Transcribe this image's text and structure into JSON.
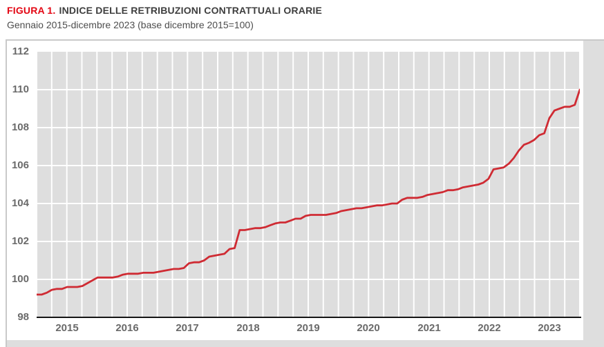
{
  "figure": {
    "label": "FIGURA 1.",
    "title": "INDICE DELLE RETRIBUZIONI CONTRATTUALI ORARIE",
    "subtitle": "Gennaio 2015-dicembre 2023 (base dicembre 2015=100)"
  },
  "colors": {
    "figura_red": "#e30613",
    "line": "#cf2b33",
    "panel_gray": "#dedede",
    "grid_white": "#ffffff",
    "axis_black": "#151515",
    "tick_gray": "#6a6a6a",
    "frame_gray": "#c9c9c9",
    "title_dark": "#3e3e3e",
    "subtitle_gray": "#4d4d4d"
  },
  "chart_data": {
    "type": "line",
    "title": "INDICE DELLE RETRIBUZIONI CONTRATTUALI ORARIE",
    "subtitle": "Gennaio 2015-dicembre 2023 (base dicembre 2015=100)",
    "xlabel": "",
    "ylabel": "",
    "ylim": [
      98,
      112
    ],
    "y_ticks": [
      112,
      110,
      108,
      106,
      104,
      102,
      100,
      98
    ],
    "x_tick_labels": [
      "2015",
      "2016",
      "2017",
      "2018",
      "2019",
      "2020",
      "2021",
      "2022",
      "2023"
    ],
    "x_frequency": "monthly",
    "x_start": "2015-01",
    "x_end": "2023-12",
    "grid": {
      "horizontal_step": 2,
      "vertical": "quarterly",
      "color": "white",
      "panel": "light-gray"
    },
    "legend": "none",
    "series": [
      {
        "name": "Indice delle retribuzioni contrattuali orarie (base dicembre 2015=100)",
        "values": [
          99.2,
          99.2,
          99.3,
          99.45,
          99.5,
          99.5,
          99.6,
          99.6,
          99.6,
          99.65,
          99.8,
          99.95,
          100.1,
          100.1,
          100.1,
          100.1,
          100.15,
          100.25,
          100.3,
          100.3,
          100.3,
          100.35,
          100.35,
          100.35,
          100.4,
          100.45,
          100.5,
          100.55,
          100.55,
          100.6,
          100.85,
          100.9,
          100.9,
          101.0,
          101.2,
          101.25,
          101.3,
          101.35,
          101.6,
          101.65,
          102.6,
          102.6,
          102.65,
          102.7,
          102.7,
          102.75,
          102.85,
          102.95,
          103.0,
          103.0,
          103.1,
          103.2,
          103.2,
          103.35,
          103.4,
          103.4,
          103.4,
          103.4,
          103.45,
          103.5,
          103.6,
          103.65,
          103.7,
          103.75,
          103.75,
          103.8,
          103.85,
          103.9,
          103.9,
          103.95,
          104.0,
          104.0,
          104.2,
          104.3,
          104.3,
          104.3,
          104.35,
          104.45,
          104.5,
          104.55,
          104.6,
          104.7,
          104.7,
          104.75,
          104.85,
          104.9,
          104.95,
          105.0,
          105.1,
          105.3,
          105.8,
          105.85,
          105.9,
          106.1,
          106.4,
          106.8,
          107.1,
          107.2,
          107.35,
          107.6,
          107.7,
          108.5,
          108.9,
          109.0,
          109.1,
          109.1,
          109.2,
          110.0
        ]
      }
    ]
  }
}
